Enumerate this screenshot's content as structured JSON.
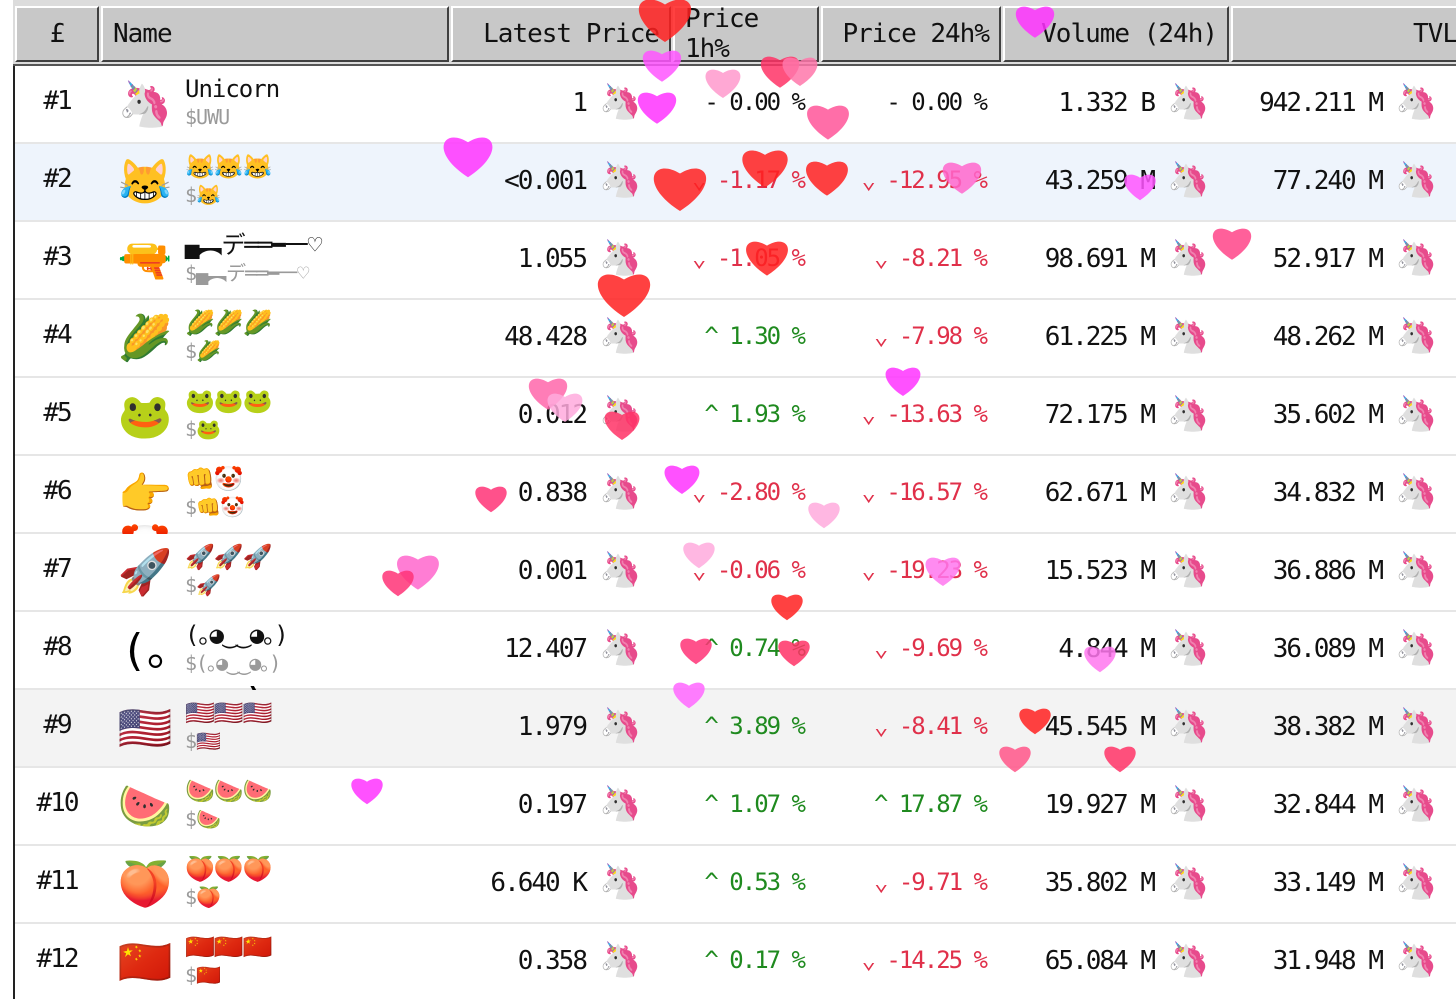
{
  "header": {
    "currency_symbol": "£",
    "name": "Name",
    "latest_price": "Latest Price",
    "price_1h": "Price 1h%",
    "price_24h": "Price 24h%",
    "volume_24h": "Volume (24h)",
    "tvl": "TVL"
  },
  "currency_icon": "🦄",
  "colors": {
    "up": "#1f8a1f",
    "down": "#e0304a",
    "highlight_row": "#eef4fc"
  },
  "rows": [
    {
      "rank": "#1",
      "icon": "🦄",
      "name": "Unicorn",
      "symbol": "$UWU",
      "price": "1",
      "chg_1h": "- 0.00 %",
      "dir_1h": "flat",
      "chg_24h": "- 0.00 %",
      "dir_24h": "flat",
      "volume": "1.332 B",
      "tvl": "942.211 M"
    },
    {
      "rank": "#2",
      "icon": "😹",
      "name": "😹😹😹",
      "symbol": "$😹",
      "price": "<0.001",
      "chg_1h": "⌄ -1.17 %",
      "dir_1h": "down",
      "chg_24h": "⌄ -12.95 %",
      "dir_24h": "down",
      "volume": "43.259 M",
      "tvl": "77.240 M"
    },
    {
      "rank": "#3",
      "icon": "🔫",
      "name": "▄︻デ══━一♡",
      "symbol": "$▄︻デ══━一♡",
      "price": "1.055",
      "chg_1h": "⌄ -1.05 %",
      "dir_1h": "down",
      "chg_24h": "⌄ -8.21 %",
      "dir_24h": "down",
      "volume": "98.691 M",
      "tvl": "52.917 M"
    },
    {
      "rank": "#4",
      "icon": "🌽",
      "name": "🌽🌽🌽",
      "symbol": "$🌽",
      "price": "48.428",
      "chg_1h": "^ 1.30 %",
      "dir_1h": "up",
      "chg_24h": "⌄ -7.98 %",
      "dir_24h": "down",
      "volume": "61.225 M",
      "tvl": "48.262 M"
    },
    {
      "rank": "#5",
      "icon": "🐸",
      "name": "🐸🐸🐸",
      "symbol": "$🐸",
      "price": "0.012",
      "chg_1h": "^ 1.93 %",
      "dir_1h": "up",
      "chg_24h": "⌄ -13.63 %",
      "dir_24h": "down",
      "volume": "72.175 M",
      "tvl": "35.602 M"
    },
    {
      "rank": "#6",
      "icon": "👉🤡",
      "name": "👊🤡",
      "symbol": "$👊🤡",
      "price": "0.838",
      "chg_1h": "⌄ -2.80 %",
      "dir_1h": "down",
      "chg_24h": "⌄ -16.57 %",
      "dir_24h": "down",
      "volume": "62.671 M",
      "tvl": "34.832 M"
    },
    {
      "rank": "#7",
      "icon": "🚀",
      "name": "🚀🚀🚀",
      "symbol": "$🚀",
      "price": "0.001",
      "chg_1h": "⌄ -0.06 %",
      "dir_1h": "down",
      "chg_24h": "⌄ -19.23 %",
      "dir_24h": "down",
      "volume": "15.523 M",
      "tvl": "36.886 M"
    },
    {
      "rank": "#8",
      "icon": "(｡◕‿‿◕｡)",
      "name": "(｡◕‿‿◕｡)",
      "symbol": "$(｡◕‿‿◕｡)",
      "price": "12.407",
      "chg_1h": "^ 0.74 %",
      "dir_1h": "up",
      "chg_24h": "⌄ -9.69 %",
      "dir_24h": "down",
      "volume": "4.844 M",
      "tvl": "36.089 M"
    },
    {
      "rank": "#9",
      "icon": "🇺🇸",
      "name": "🇺🇸🇺🇸🇺🇸",
      "symbol": "$🇺🇸",
      "price": "1.979",
      "chg_1h": "^ 3.89 %",
      "dir_1h": "up",
      "chg_24h": "⌄ -8.41 %",
      "dir_24h": "down",
      "volume": "45.545 M",
      "tvl": "38.382 M"
    },
    {
      "rank": "#10",
      "icon": "🍉",
      "name": "🍉🍉🍉",
      "symbol": "$🍉",
      "price": "0.197",
      "chg_1h": "^ 1.07 %",
      "dir_1h": "up",
      "chg_24h": "^ 17.87 %",
      "dir_24h": "up",
      "volume": "19.927 M",
      "tvl": "32.844 M"
    },
    {
      "rank": "#11",
      "icon": "🍑",
      "name": "🍑🍑🍑",
      "symbol": "$🍑",
      "price": "6.640 K",
      "chg_1h": "^ 0.53 %",
      "dir_1h": "up",
      "chg_24h": "⌄ -9.71 %",
      "dir_24h": "down",
      "volume": "35.802 M",
      "tvl": "33.149 M"
    },
    {
      "rank": "#12",
      "icon": "🇨🇳",
      "name": "🇨🇳🇨🇳🇨🇳",
      "symbol": "$🇨🇳",
      "price": "0.358",
      "chg_1h": "^ 0.17 %",
      "dir_1h": "up",
      "chg_24h": "⌄ -14.25 %",
      "dir_24h": "down",
      "volume": "65.084 M",
      "tvl": "31.948 M"
    }
  ],
  "row_styles": [
    "normal",
    "highlight",
    "normal",
    "normal",
    "normal",
    "normal",
    "normal",
    "normal",
    "gray",
    "normal",
    "normal",
    "normal"
  ]
}
